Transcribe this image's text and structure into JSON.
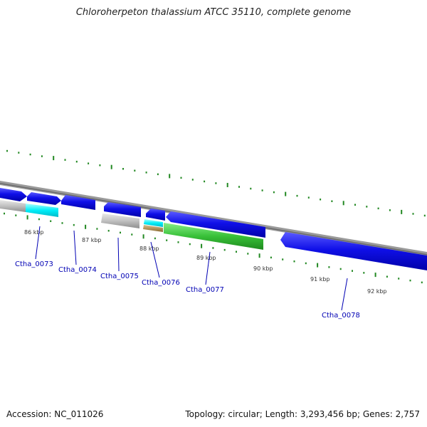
{
  "title": "Chloroherpeton thalassium ATCC 35110, complete genome",
  "footer": {
    "accession": "Accession: NC_011026",
    "summary": "Topology: circular; Length: 3,293,456 bp; Genes: 2,757"
  },
  "scale_labels": [
    "86 kbp",
    "87 kbp",
    "88 kbp",
    "89 kbp",
    "90 kbp",
    "91 kbp",
    "92 kbp"
  ],
  "gene_labels": [
    "Ctha_0073",
    "Ctha_0074",
    "Ctha_0075",
    "Ctha_0076",
    "Ctha_0077",
    "Ctha_0078"
  ],
  "colors": {
    "forward_cds": "#0000dc",
    "cyan_feature": "#00e4f0",
    "gray_feature": "#b8b8b8",
    "tan_feature": "#b09060",
    "green_feature": "#33bb33",
    "backbone": "#888888",
    "ticks": "#228822",
    "gene_label": "#0000b4"
  }
}
